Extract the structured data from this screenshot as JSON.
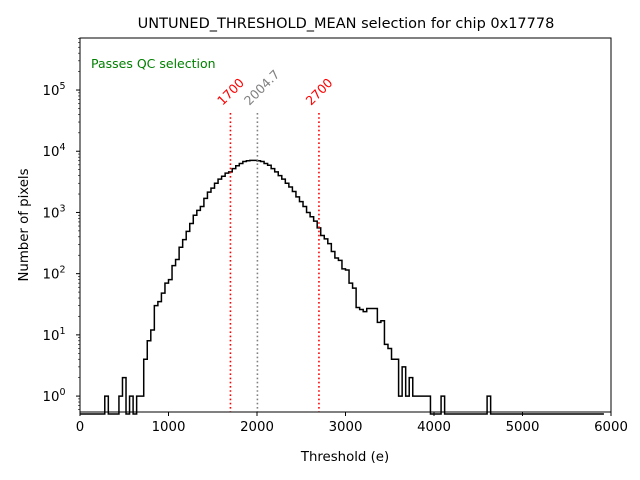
{
  "chart_data": {
    "type": "histogram",
    "title": "UNTUNED_THRESHOLD_MEAN selection for chip 0x17778",
    "xlabel": "Threshold (e)",
    "ylabel": "Number of pixels",
    "xlim": [
      0,
      6000
    ],
    "ylim_log10": [
      -0.26,
      5.85
    ],
    "yscale": "log",
    "x_ticks": [
      0,
      1000,
      2000,
      3000,
      4000,
      5000,
      6000
    ],
    "x_tick_labels": [
      "0",
      "1000",
      "2000",
      "3000",
      "4000",
      "5000",
      "6000"
    ],
    "y_ticks": [
      1,
      10,
      100,
      1000,
      10000,
      100000
    ],
    "y_tick_labels": [
      {
        "base": "10",
        "exp": "0"
      },
      {
        "base": "10",
        "exp": "1"
      },
      {
        "base": "10",
        "exp": "2"
      },
      {
        "base": "10",
        "exp": "3"
      },
      {
        "base": "10",
        "exp": "4"
      },
      {
        "base": "10",
        "exp": "5"
      }
    ],
    "bin_start": 0,
    "bin_width": 40,
    "counts": [
      0,
      0,
      0,
      0,
      0,
      0,
      0,
      1,
      0,
      0,
      0,
      1,
      2,
      0,
      1,
      0,
      1,
      1,
      4,
      8,
      12,
      30,
      35,
      48,
      70,
      80,
      135,
      170,
      270,
      360,
      490,
      660,
      900,
      1080,
      1250,
      1700,
      2150,
      2500,
      3000,
      3500,
      3900,
      4400,
      4600,
      5200,
      5800,
      6300,
      6800,
      7000,
      7100,
      7100,
      7000,
      6800,
      6300,
      5900,
      5200,
      4600,
      4000,
      3500,
      3000,
      2600,
      2200,
      1800,
      1500,
      1250,
      1000,
      850,
      720,
      560,
      420,
      370,
      310,
      230,
      180,
      165,
      120,
      115,
      70,
      58,
      28,
      26,
      24,
      27,
      27,
      27,
      16,
      17,
      7,
      6,
      4,
      4,
      1,
      3,
      1,
      2,
      1,
      1,
      1,
      1,
      1,
      0,
      0,
      0,
      1,
      0,
      0,
      0,
      0,
      0,
      0,
      0,
      0,
      0,
      0,
      0,
      0,
      1,
      0,
      0,
      0,
      0,
      0,
      0,
      0,
      0,
      0,
      0,
      0,
      0,
      0,
      0,
      0,
      0,
      0,
      0,
      0,
      0,
      0,
      0,
      0,
      0,
      0,
      0,
      0,
      0,
      0,
      0,
      0,
      0
    ],
    "vlines": [
      {
        "x": 1700,
        "label": "1700",
        "color": "#ff0000",
        "style": "dotted"
      },
      {
        "x": 2004.7,
        "label": "2004.7",
        "color": "#808080",
        "style": "dotted"
      },
      {
        "x": 2700,
        "label": "2700",
        "color": "#ff0000",
        "style": "dotted"
      }
    ],
    "annotation": {
      "text": "Passes QC selection",
      "color": "#008000",
      "position": "top-left"
    },
    "line_color": "#000000",
    "grid": false
  }
}
